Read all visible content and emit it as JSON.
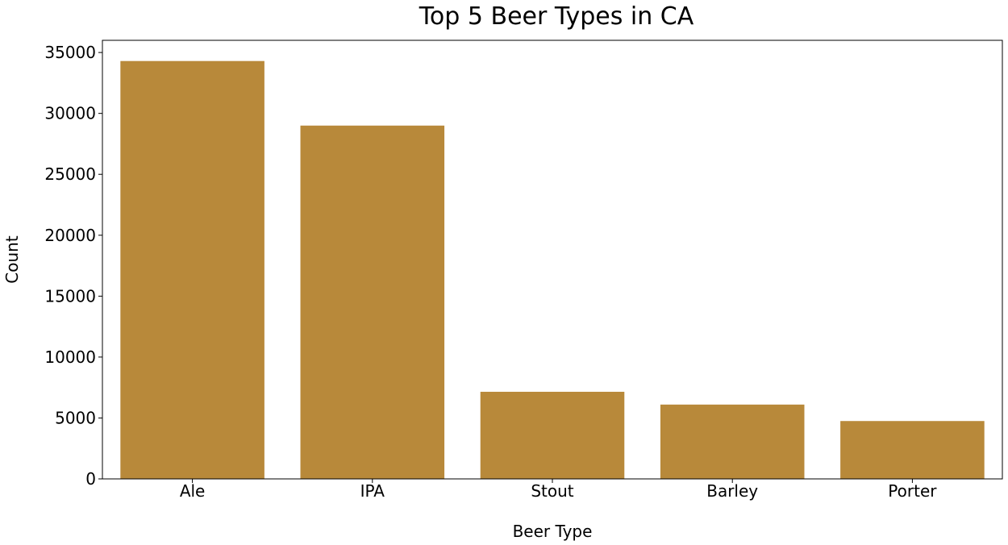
{
  "chart_data": {
    "type": "bar",
    "title": "Top 5 Beer Types in CA",
    "xlabel": "Beer Type",
    "ylabel": "Count",
    "categories": [
      "Ale",
      "IPA",
      "Stout",
      "Barley",
      "Porter"
    ],
    "values": [
      34300,
      29000,
      7150,
      6100,
      4750
    ],
    "ylim": [
      0,
      36000
    ],
    "yticks": [
      0,
      5000,
      10000,
      15000,
      20000,
      25000,
      30000,
      35000
    ],
    "bar_color": "#b8893a",
    "grid": false,
    "legend": "none"
  }
}
